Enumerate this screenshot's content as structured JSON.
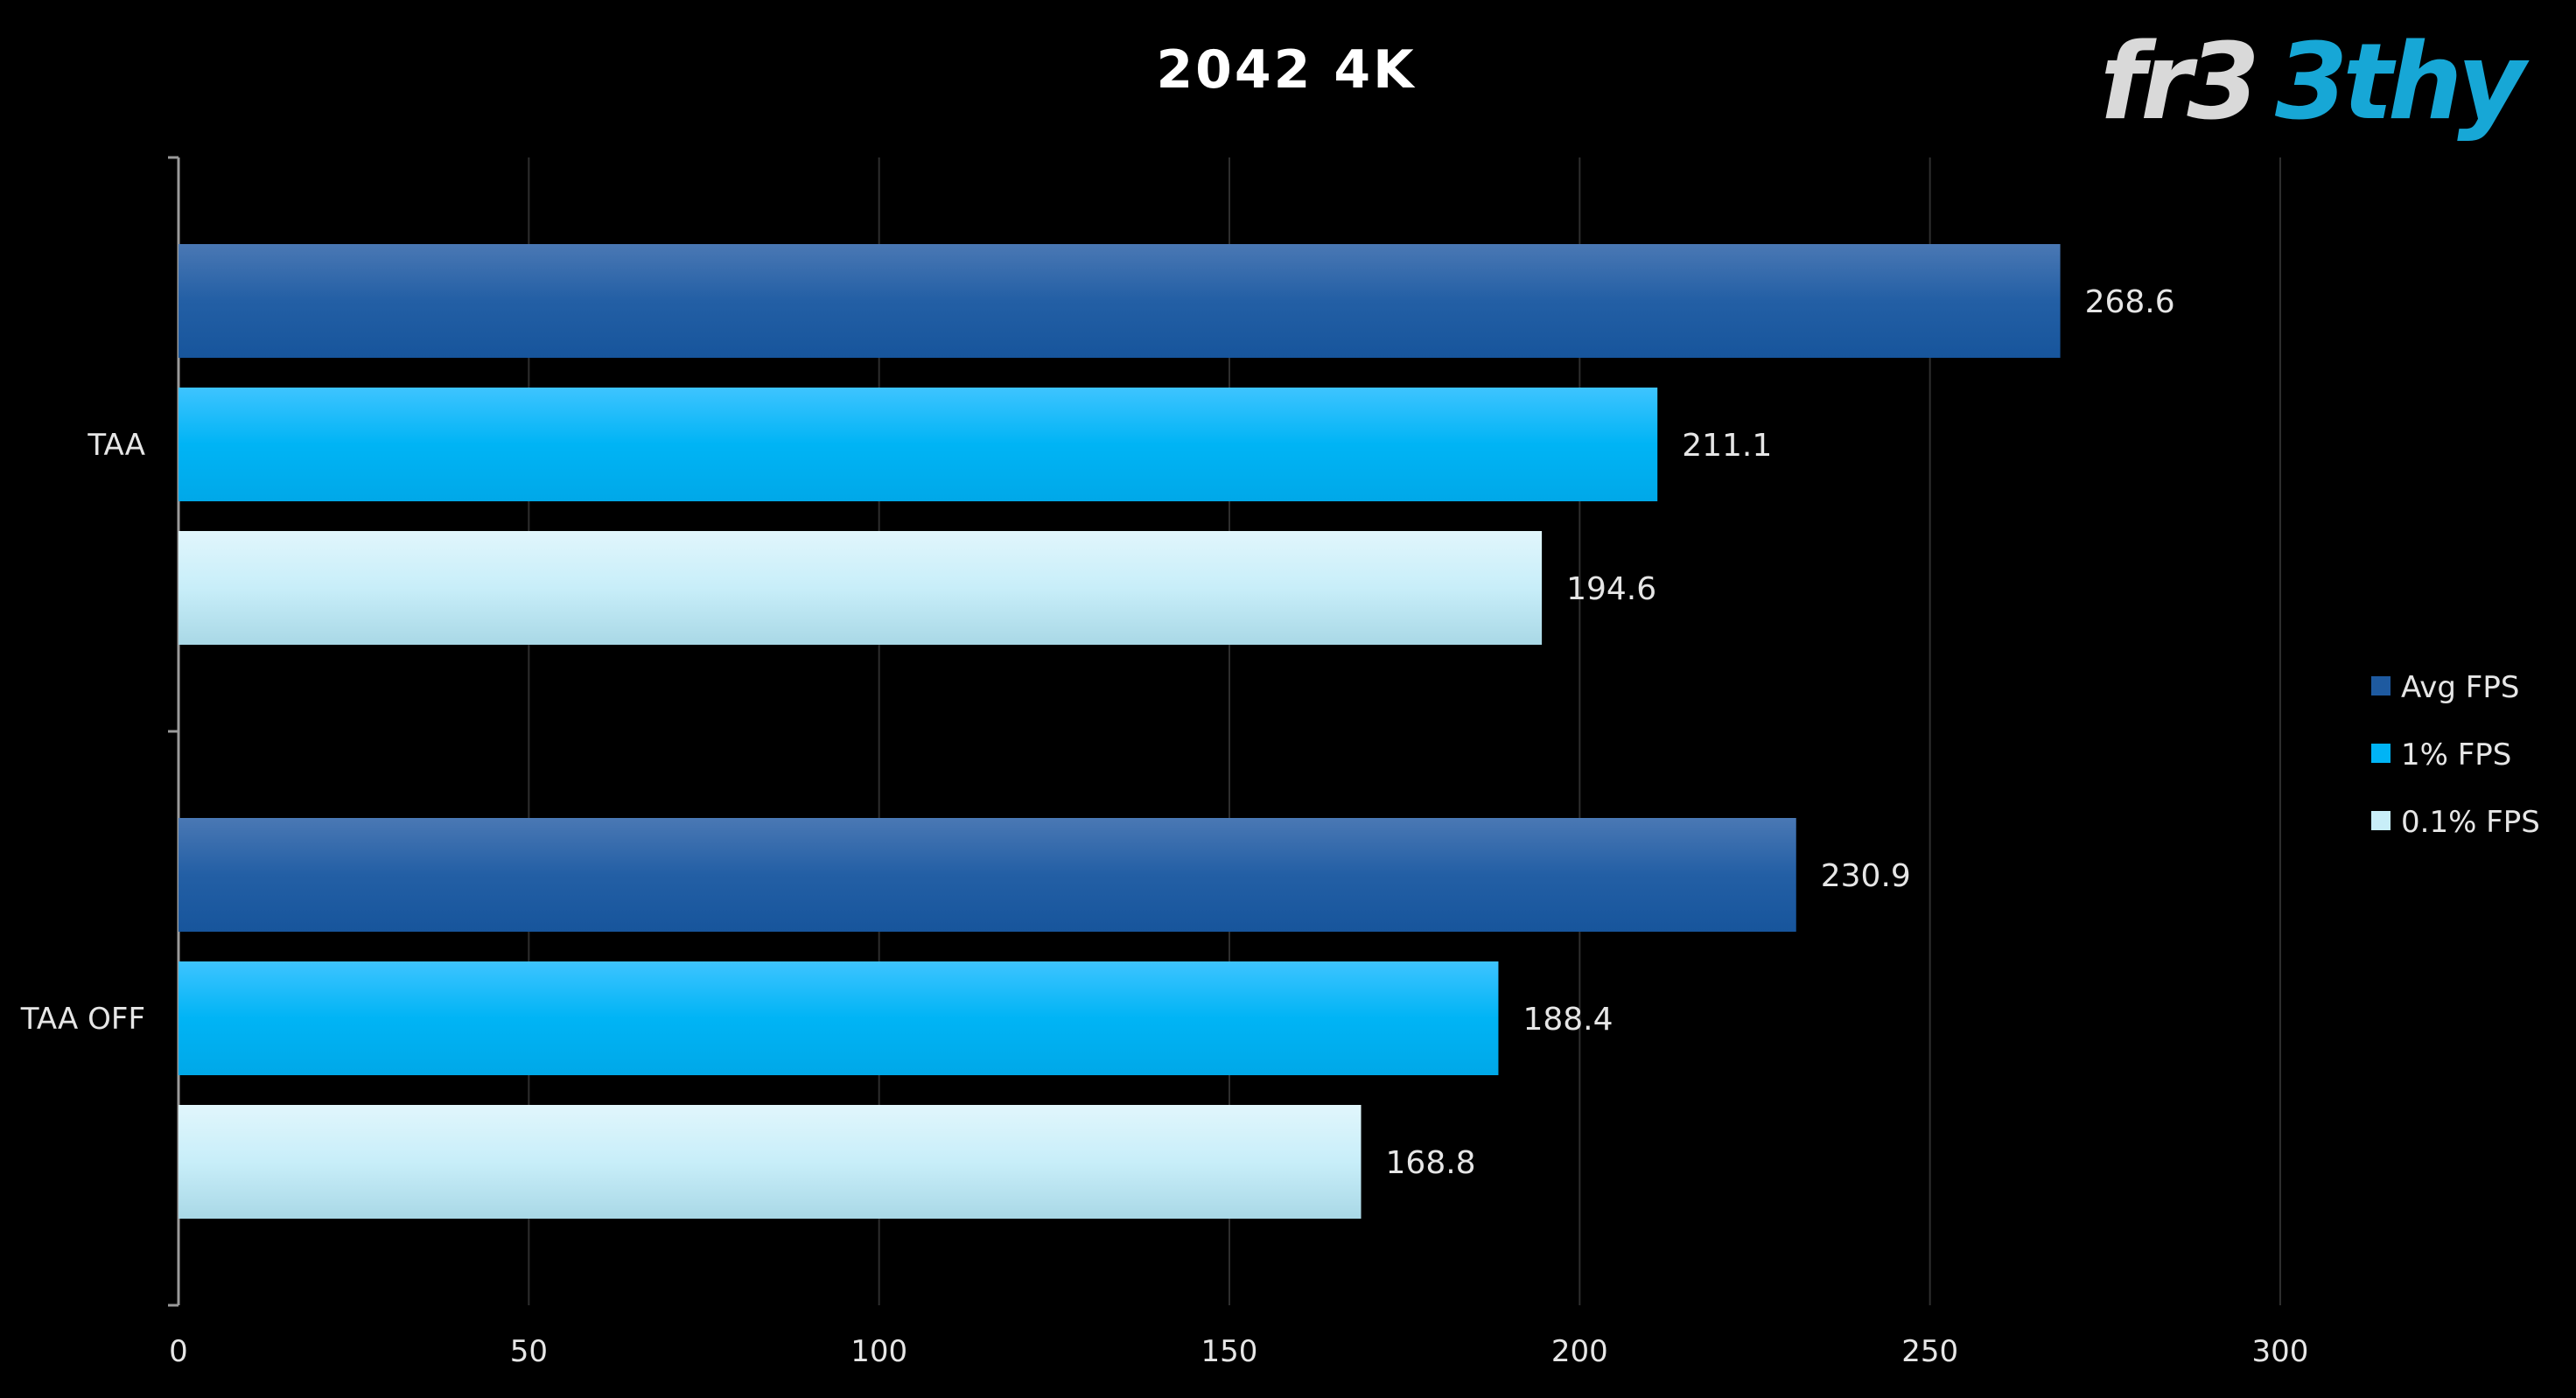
{
  "chart_data": {
    "type": "bar",
    "orientation": "horizontal",
    "title": "2042 4K",
    "categories": [
      "TAA",
      "TAA OFF"
    ],
    "series": [
      {
        "name": "Avg FPS",
        "values": [
          268.6,
          230.9
        ],
        "color": "#1e5aa0"
      },
      {
        "name": "1% FPS",
        "values": [
          211.1,
          188.4
        ],
        "color": "#00b4f5"
      },
      {
        "name": "0.1% FPS",
        "values": [
          194.6,
          168.8
        ],
        "color": "#c8eef8"
      }
    ],
    "xlim": [
      0,
      300
    ],
    "xticks": [
      "0",
      "50",
      "100",
      "150",
      "200",
      "250",
      "300"
    ],
    "xtick_values": [
      0,
      50,
      100,
      150,
      200,
      250,
      300
    ],
    "data_labels": [
      [
        "268.6",
        "230.9"
      ],
      [
        "211.1",
        "188.4"
      ],
      [
        "194.6",
        "168.8"
      ]
    ],
    "grid": true,
    "legend_position": "right"
  },
  "logo": {
    "text": "fr33thy",
    "color_main": "#d9d9d9",
    "color_accent": "#17a7d6"
  }
}
